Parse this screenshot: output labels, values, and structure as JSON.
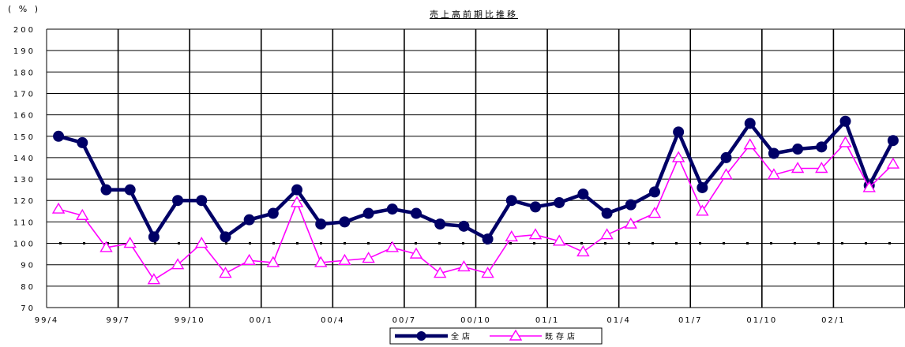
{
  "chart_data": {
    "type": "line",
    "title": "売上高前期比推移",
    "unit_label": "( % )",
    "ylim": [
      70,
      200
    ],
    "y_ticks": [
      70,
      80,
      90,
      100,
      110,
      120,
      130,
      140,
      150,
      160,
      170,
      180,
      190,
      200
    ],
    "x_tick_labels": [
      "99/4",
      "99/7",
      "99/10",
      "00/1",
      "00/4",
      "00/7",
      "00/10",
      "01/1",
      "01/4",
      "01/7",
      "01/10",
      "02/1"
    ],
    "x": [
      "99/4",
      "99/5",
      "99/6",
      "99/7",
      "99/8",
      "99/9",
      "99/10",
      "99/11",
      "99/12",
      "00/1",
      "00/2",
      "00/3",
      "00/4",
      "00/5",
      "00/6",
      "00/7",
      "00/8",
      "00/9",
      "00/10",
      "00/11",
      "00/12",
      "01/1",
      "01/2",
      "01/3",
      "01/4",
      "01/5",
      "01/6",
      "01/7",
      "01/8",
      "01/9",
      "01/10",
      "01/11",
      "01/12",
      "02/1",
      "02/2",
      "02/3"
    ],
    "reference_line": 100,
    "grid": true,
    "legend_position": "bottom",
    "series": [
      {
        "name": "全店",
        "color": "#000066",
        "marker": "circle",
        "values": [
          150,
          147,
          125,
          125,
          103,
          120,
          120,
          103,
          111,
          114,
          125,
          109,
          110,
          114,
          116,
          114,
          109,
          108,
          102,
          120,
          117,
          119,
          123,
          114,
          118,
          124,
          152,
          126,
          140,
          156,
          142,
          144,
          145,
          157,
          127,
          148
        ]
      },
      {
        "name": "既存店",
        "color": "#ff00ff",
        "marker": "triangle",
        "values": [
          116,
          113,
          98,
          100,
          83,
          90,
          100,
          86,
          92,
          91,
          119,
          91,
          92,
          93,
          98,
          95,
          86,
          89,
          86,
          103,
          104,
          101,
          96,
          104,
          109,
          114,
          140,
          115,
          132,
          146,
          132,
          135,
          135,
          147,
          126,
          137
        ]
      }
    ]
  }
}
